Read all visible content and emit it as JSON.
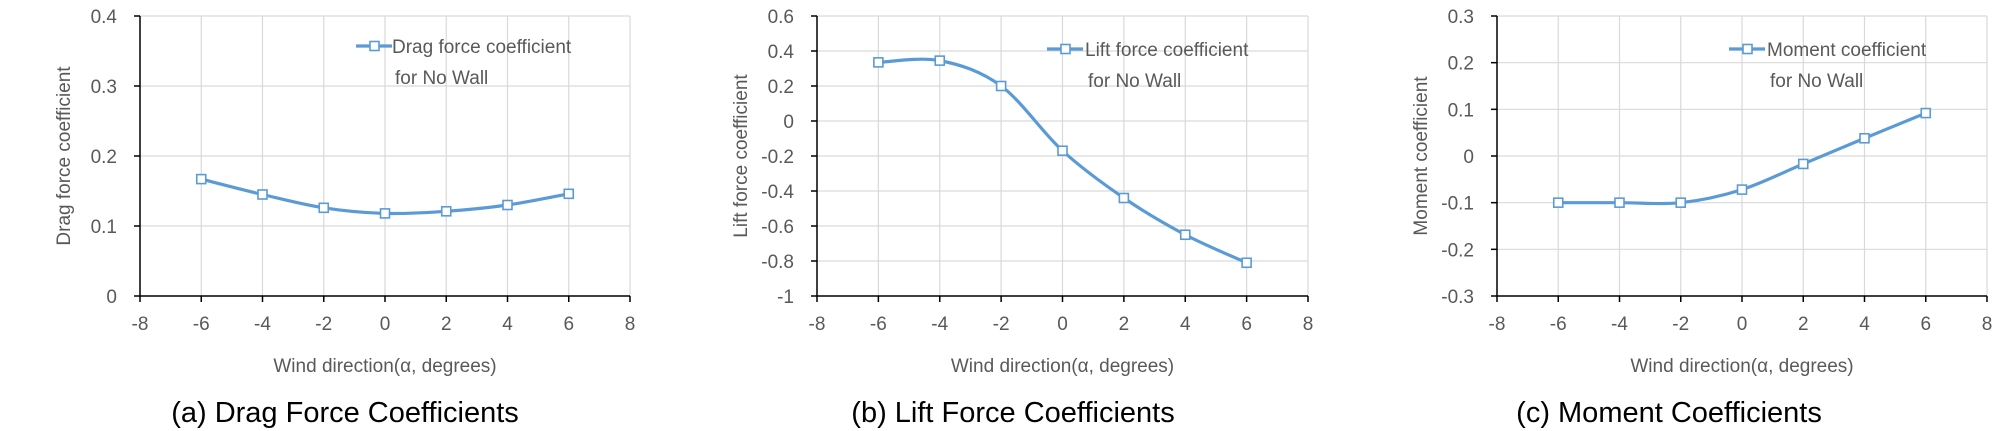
{
  "colors": {
    "series": "#5b9bd5",
    "grid": "#d9d9d9",
    "axis": "#000000",
    "text": "#595959"
  },
  "chart_data": [
    {
      "type": "line",
      "caption": "(a) Drag Force Coefficients",
      "xlabel": "Wind direction(α, degrees)",
      "ylabel": "Drag force coefficient",
      "xlim": [
        -8,
        8
      ],
      "ylim": [
        0,
        0.4
      ],
      "xticks": [
        "-8",
        "-6",
        "-4",
        "-2",
        "0",
        "2",
        "4",
        "6",
        "8"
      ],
      "yticks": [
        "0",
        "0.1",
        "0.2",
        "0.3",
        "0.4"
      ],
      "grid": true,
      "legend_position": "top-right",
      "series": [
        {
          "name": "Drag force coefficient for No Wall",
          "legend_lines": [
            "Drag force coefficient",
            "for No Wall"
          ],
          "x": [
            -6,
            -4,
            -2,
            0,
            2,
            4,
            6
          ],
          "y": [
            0.167,
            0.145,
            0.126,
            0.118,
            0.121,
            0.13,
            0.146
          ]
        }
      ]
    },
    {
      "type": "line",
      "caption": "(b) Lift Force Coefficients",
      "xlabel": "Wind direction(α, degrees)",
      "ylabel": "Lift force coefficient",
      "xlim": [
        -8,
        8
      ],
      "ylim": [
        -1,
        0.6
      ],
      "xticks": [
        "-8",
        "-6",
        "-4",
        "-2",
        "0",
        "2",
        "4",
        "6",
        "8"
      ],
      "yticks": [
        "-1",
        "-0.8",
        "-0.6",
        "-0.4",
        "-0.2",
        "0",
        "0.2",
        "0.4",
        "0.6"
      ],
      "grid": true,
      "legend_position": "top-right",
      "series": [
        {
          "name": "Lift force coefficient for No Wall",
          "legend_lines": [
            "Lift force coefficient",
            "for No Wall"
          ],
          "x": [
            -6,
            -4,
            -2,
            0,
            2,
            4,
            6
          ],
          "y": [
            0.335,
            0.345,
            0.2,
            -0.17,
            -0.44,
            -0.65,
            -0.81
          ]
        }
      ]
    },
    {
      "type": "line",
      "caption": "(c) Moment Coefficients",
      "xlabel": "Wind direction(α, degrees)",
      "ylabel": "Moment coefficient",
      "xlim": [
        -8,
        8
      ],
      "ylim": [
        -0.3,
        0.3
      ],
      "xticks": [
        "-8",
        "-6",
        "-4",
        "-2",
        "0",
        "2",
        "4",
        "6",
        "8"
      ],
      "yticks": [
        "-0.3",
        "-0.2",
        "-0.1",
        "0",
        "0.1",
        "0.2",
        "0.3"
      ],
      "grid": true,
      "legend_position": "top-right",
      "series": [
        {
          "name": "Moment coefficient for No Wall",
          "legend_lines": [
            "Moment coefficient",
            "for No Wall"
          ],
          "x": [
            -6,
            -4,
            -2,
            0,
            2,
            4,
            6
          ],
          "y": [
            -0.1,
            -0.1,
            -0.1,
            -0.072,
            -0.017,
            0.038,
            0.092
          ]
        }
      ]
    }
  ]
}
